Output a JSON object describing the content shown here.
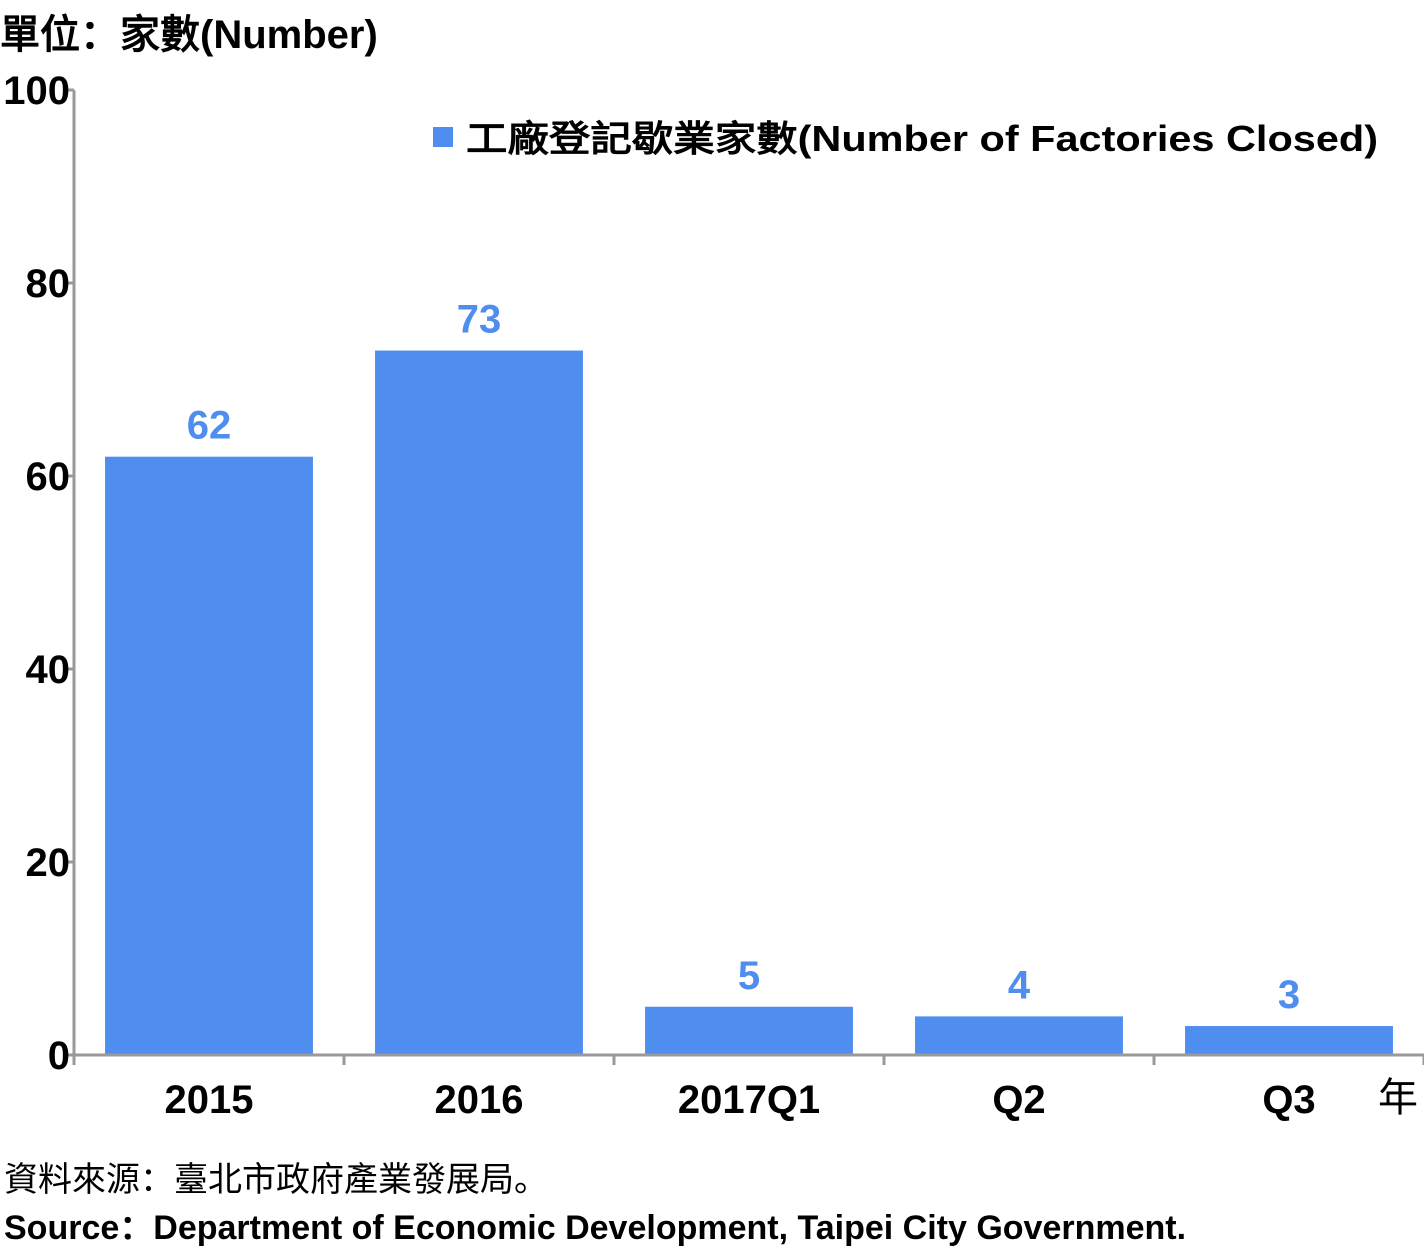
{
  "unit_label": "單位：家數(Number)",
  "chart_data": {
    "type": "bar",
    "categories": [
      "2015",
      "2016",
      "2017Q1",
      "Q2",
      "Q3"
    ],
    "series": [
      {
        "name": "工廠登記歇業家數(Number of Factories Closed)",
        "values": [
          62,
          73,
          5,
          4,
          3
        ]
      }
    ],
    "ylim": [
      0,
      100
    ],
    "yticks": [
      0,
      20,
      40,
      60,
      80,
      100
    ],
    "xlabel": "年",
    "ylabel": "單位：家數(Number)",
    "legend_position": "top-right",
    "grid": false,
    "data_labels": true
  },
  "colors": {
    "bar": "#4f8def",
    "data_label": "#4f8def",
    "axis": "#999999"
  },
  "source": {
    "zh": "資料來源：臺北市政府產業發展局。",
    "en": "Source：Department of Economic Development, Taipei City Government."
  }
}
